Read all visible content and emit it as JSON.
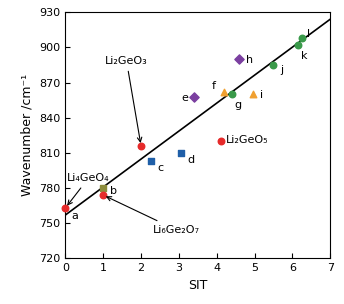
{
  "chart_data": {
    "type": "scatter",
    "x_label": "SIT",
    "y_label": "Wavenumber /cm⁻¹",
    "xlim": [
      0,
      7
    ],
    "xticks": [
      0,
      1,
      2,
      3,
      4,
      5,
      6,
      7
    ],
    "ylim": [
      720,
      930
    ],
    "yticks": [
      720,
      750,
      780,
      810,
      840,
      870,
      900,
      930
    ],
    "fit_line": {
      "type": "line",
      "color": "#000000",
      "x": [
        0,
        7
      ],
      "values": [
        757,
        924
      ]
    },
    "points": [
      {
        "x": 0,
        "y": 763,
        "color": "#e62a2a",
        "marker": "circle",
        "label": "a"
      },
      {
        "x": 1,
        "y": 780,
        "color": "#8c8c3c",
        "marker": "square",
        "label": "b"
      },
      {
        "x": 1,
        "y": 774,
        "color": "#e62a2a",
        "marker": "circle",
        "label": null
      },
      {
        "x": 2,
        "y": 816,
        "color": "#e62a2a",
        "marker": "circle",
        "label": null
      },
      {
        "x": 2.25,
        "y": 803,
        "color": "#1f5fa8",
        "marker": "square",
        "label": "c"
      },
      {
        "x": 3.05,
        "y": 810,
        "color": "#1f5fa8",
        "marker": "square",
        "label": "d"
      },
      {
        "x": 4.1,
        "y": 820,
        "color": "#e62a2a",
        "marker": "circle",
        "label": null
      },
      {
        "x": 3.4,
        "y": 858,
        "color": "#7b3fa0",
        "marker": "diamond",
        "label": "e"
      },
      {
        "x": 4.2,
        "y": 862,
        "color": "#f0a030",
        "marker": "triangle",
        "label": "f"
      },
      {
        "x": 4.4,
        "y": 860,
        "color": "#3a9a4a",
        "marker": "circle",
        "label": "g"
      },
      {
        "x": 4.6,
        "y": 890,
        "color": "#7b3fa0",
        "marker": "diamond",
        "label": "h"
      },
      {
        "x": 4.95,
        "y": 860,
        "color": "#f0a030",
        "marker": "triangle",
        "label": "i"
      },
      {
        "x": 5.5,
        "y": 885,
        "color": "#3a9a4a",
        "marker": "circle",
        "label": "j"
      },
      {
        "x": 6.15,
        "y": 902,
        "color": "#3a9a4a",
        "marker": "circle",
        "label": "k"
      },
      {
        "x": 6.25,
        "y": 908,
        "color": "#3a9a4a",
        "marker": "circle",
        "label": "l"
      }
    ],
    "annotations": [
      {
        "text": "Li₂GeO₃",
        "target": [
          2,
          816
        ]
      },
      {
        "text": "Li₄GeO₄",
        "target": [
          0,
          763
        ]
      },
      {
        "text": "Li₆Ge₂O₇",
        "target": [
          1,
          774
        ]
      },
      {
        "text": "Li₂GeO₅"
      }
    ]
  }
}
